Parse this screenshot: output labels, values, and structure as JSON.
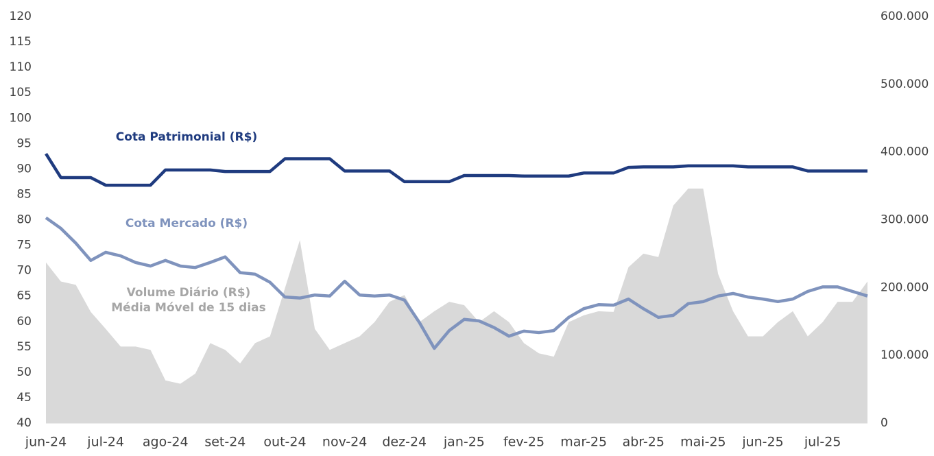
{
  "chart_data": {
    "type": "line",
    "categories": [
      "jun-24",
      null,
      null,
      null,
      "jul-24",
      null,
      null,
      null,
      "ago-24",
      null,
      null,
      null,
      "set-24",
      null,
      null,
      null,
      "out-24",
      null,
      null,
      null,
      "nov-24",
      null,
      null,
      null,
      "dez-24",
      null,
      null,
      null,
      "jan-25",
      null,
      null,
      null,
      "fev-25",
      null,
      null,
      null,
      "mar-25",
      null,
      null,
      null,
      "abr-25",
      null,
      null,
      null,
      "mai-25",
      null,
      null,
      null,
      "jun-25",
      null,
      null,
      null,
      "jul-25",
      null,
      null,
      null
    ],
    "series": [
      {
        "name": "Volume Diário (R$)",
        "annotation": "Média Móvel de 15 dias",
        "kind": "area",
        "axis": "y2",
        "color": "#d9d9d9",
        "values": [
          237000,
          209000,
          204000,
          164000,
          139000,
          113000,
          113000,
          108000,
          63000,
          58000,
          73000,
          118000,
          108000,
          88000,
          118000,
          128000,
          199000,
          270000,
          139000,
          108000,
          118000,
          128000,
          149000,
          179000,
          189000,
          149000,
          165000,
          179000,
          174000,
          149000,
          165000,
          149000,
          118000,
          103000,
          98000,
          149000,
          159000,
          165000,
          164000,
          230000,
          250000,
          245000,
          321000,
          346000,
          346000,
          220000,
          165000,
          128000,
          128000,
          149000,
          165000,
          128000,
          149000,
          179000,
          179000,
          209000
        ]
      },
      {
        "name": "Cota Patrimonial (R$)",
        "kind": "line",
        "color": "#1f3b7f",
        "values": [
          93,
          88.3,
          88.3,
          88.3,
          86.8,
          86.8,
          86.8,
          86.8,
          89.8,
          89.8,
          89.8,
          89.8,
          89.5,
          89.5,
          89.5,
          89.5,
          92,
          92,
          92,
          92,
          89.6,
          89.6,
          89.6,
          89.6,
          87.5,
          87.5,
          87.5,
          87.5,
          88.7,
          88.7,
          88.7,
          88.7,
          88.6,
          88.6,
          88.6,
          88.6,
          89.2,
          89.2,
          89.2,
          90.3,
          90.4,
          90.4,
          90.4,
          90.6,
          90.6,
          90.6,
          90.6,
          90.4,
          90.4,
          90.4,
          90.4,
          89.6,
          89.6,
          89.6,
          89.6,
          89.6
        ]
      },
      {
        "name": "Cota Mercado (R$)",
        "kind": "line",
        "color": "#7f93bd",
        "values": [
          80.4,
          78.3,
          75.4,
          72,
          73.6,
          72.9,
          71.6,
          70.9,
          72,
          70.9,
          70.6,
          71.6,
          72.7,
          69.6,
          69.3,
          67.7,
          64.8,
          64.6,
          65.2,
          65,
          67.9,
          65.2,
          65,
          65.2,
          64.2,
          59.8,
          54.7,
          58.2,
          60.4,
          60.1,
          58.8,
          57.1,
          58.1,
          57.8,
          58.2,
          60.8,
          62.5,
          63.3,
          63.2,
          64.4,
          62.5,
          60.8,
          61.2,
          63.5,
          63.9,
          65,
          65.5,
          64.8,
          64.4,
          63.9,
          64.4,
          65.9,
          66.8,
          66.8,
          65.9,
          65
        ]
      }
    ],
    "ylim": [
      40,
      120
    ],
    "yticks": [
      40,
      45,
      50,
      55,
      60,
      65,
      70,
      75,
      80,
      85,
      90,
      95,
      100,
      105,
      110,
      115,
      120
    ],
    "y2lim": [
      0,
      600000
    ],
    "y2ticks": [
      0,
      {
        "value": 100000,
        "label": "100.000"
      },
      {
        "value": 200000,
        "label": "200.000"
      },
      {
        "value": 300000,
        "label": "300.000"
      },
      {
        "value": 400000,
        "label": "400.000"
      },
      {
        "value": 500000,
        "label": "500.000"
      },
      {
        "value": 600000,
        "label": "600.000"
      }
    ]
  }
}
